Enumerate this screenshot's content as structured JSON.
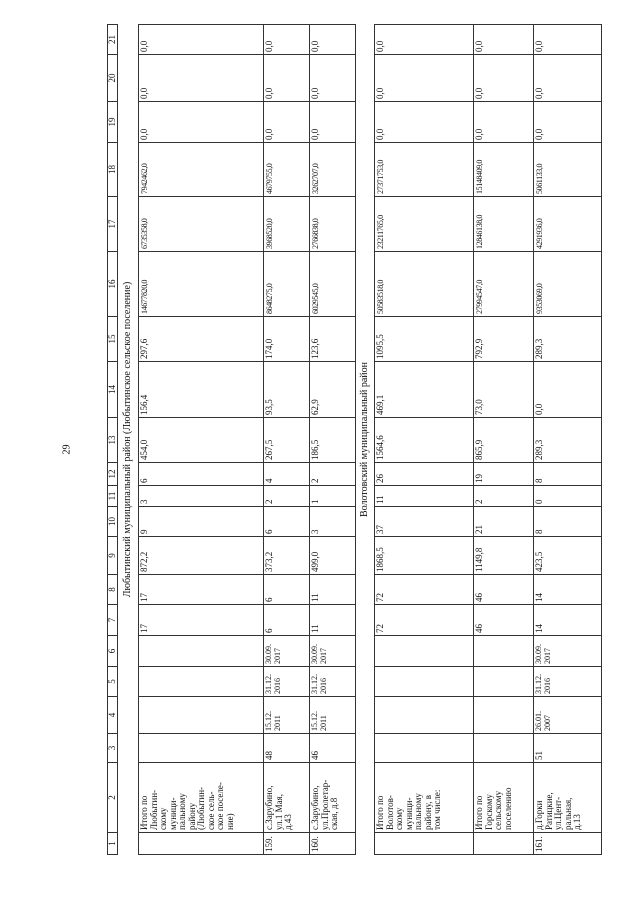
{
  "page_number": "29",
  "header": [
    "1",
    "2",
    "3",
    "4",
    "5",
    "6",
    "7",
    "8",
    "9",
    "10",
    "11",
    "12",
    "13",
    "14",
    "15",
    "16",
    "17",
    "18",
    "19",
    "20",
    "21"
  ],
  "sections": [
    {
      "title": "Любытинский муниципальный район (Любытинское сельское поселение)",
      "rows": [
        [
          "",
          "Итого по\nЛюбытин-\nскому\nмуници-\nпальному\nрайону\n(Любытин-\nское сель-\nское поселе-\nние)",
          "",
          "",
          "",
          "",
          "17",
          "17",
          "872,2",
          "9",
          "3",
          "6",
          "454,0",
          "156,4",
          "297,6",
          "14677820,0",
          "6735358,0",
          "7942462,0",
          "0,0",
          "0,0",
          "0,0"
        ],
        [
          "159.",
          "с.Зарубино,\nул.1 Мая,\nд.43",
          "48",
          "15.12.\n2011",
          "31.12.\n2016",
          "30.09.\n2017",
          "6",
          "6",
          "373,2",
          "6",
          "2",
          "4",
          "267,5",
          "93,5",
          "174,0",
          "8648275,0",
          "3968520,0",
          "4679755,0",
          "0,0",
          "0,0",
          "0,0"
        ],
        [
          "160.",
          "с.Зарубино,\nул.Пролетар-\nская, д.8",
          "46",
          "15.12.\n2011",
          "31.12.\n2016",
          "30.09.\n2017",
          "11",
          "11",
          "499,0",
          "3",
          "1",
          "2",
          "186,5",
          "62,9",
          "123,6",
          "6029545,0",
          "2766838,0",
          "3262707,0",
          "0,0",
          "0,0",
          "0,0"
        ]
      ]
    },
    {
      "title": "Волотовский муниципальный район",
      "rows": [
        [
          "",
          "Итого по\nВолотов-\nскому\nмуници-\nпальному\nрайону, в\nтом числе:",
          "",
          "",
          "",
          "",
          "72",
          "72",
          "1868,5",
          "37",
          "11",
          "26",
          "1564,6",
          "469,1",
          "1095,5",
          "50583518,0",
          "23211765,0",
          "27371753,0",
          "0,0",
          "0,0",
          "0,0"
        ],
        [
          "",
          "Итого по\nГорскому\nсельскому\nпоселению",
          "",
          "",
          "",
          "",
          "46",
          "46",
          "1149,8",
          "21",
          "2",
          "19",
          "865,9",
          "73,0",
          "792,9",
          "27994547,0",
          "12846138,0",
          "15148409,0",
          "0,0",
          "0,0",
          "0,0"
        ],
        [
          "161.",
          "д.Горки\nРатицкие,\nул.Цент-\nральная,\nд.13",
          "51",
          "26.01.\n2007",
          "31.12.\n2016",
          "30.09.\n2017",
          "14",
          "14",
          "423,5",
          "8",
          "0",
          "8",
          "289,3",
          "0,0",
          "289,3",
          "9353069,0",
          "4291936,0",
          "5061133,0",
          "0,0",
          "0,0",
          "0,0"
        ]
      ]
    }
  ]
}
